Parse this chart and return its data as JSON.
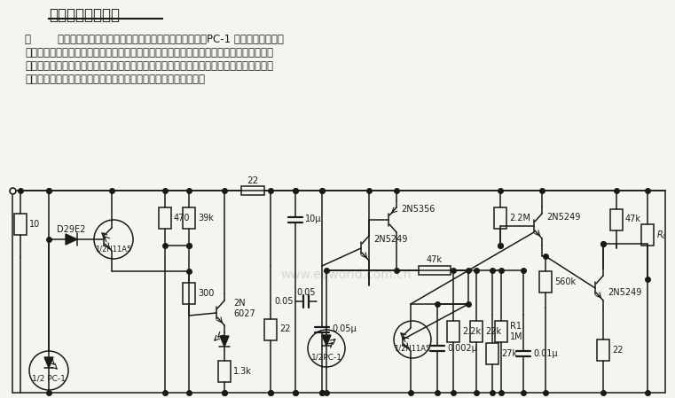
{
  "title": "遥控红外检测电路",
  "title_fontsize": 12,
  "desc_lines": [
    "图        中所示电路可以在较长距离内传输被检测目标的信号。PC-1 是一红外二极管和",
    "光敏晶体管对。当有物体或目标阻挡二极管光照射到光敏晶体管时，光敏晶体管由导通变为",
    "截止，并通过放大和第二对红外二极管和光敏晶体管对以及功率放大传速至负载（报警装置",
    "或信号灯）。第二对红外二极管和光敏晶体管对起失效保险作用。"
  ],
  "desc_fontsize": 8.5,
  "watermark": "www.eeworld.com.cn",
  "bg": "#f5f5f0",
  "lc": "#1a1a1a"
}
